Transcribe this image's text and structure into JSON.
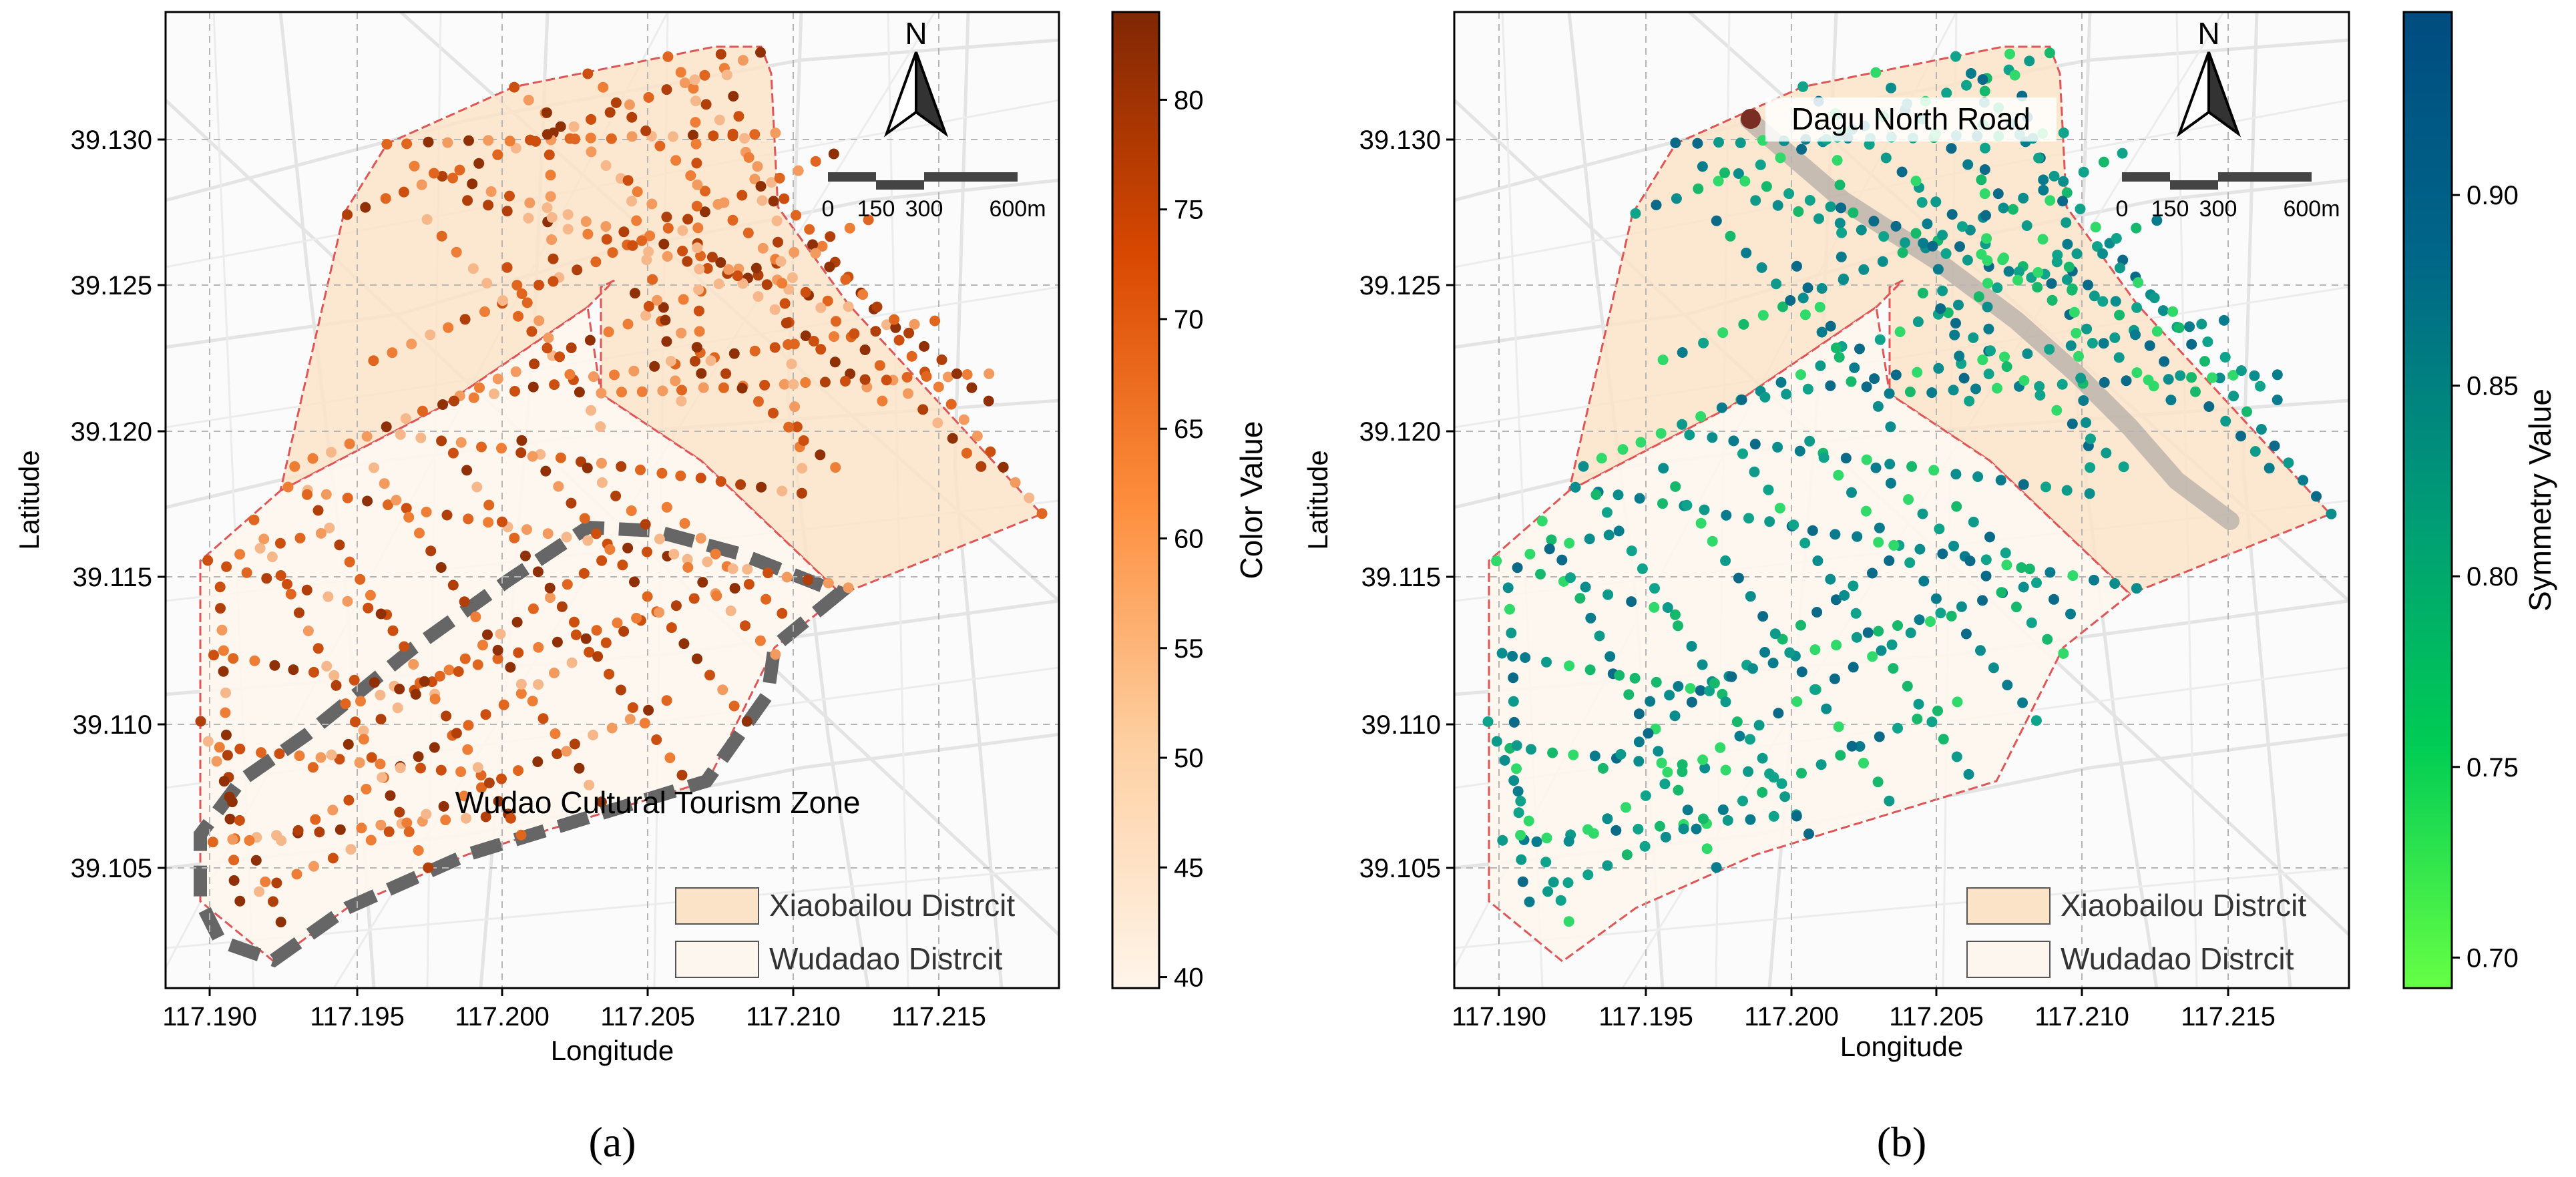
{
  "figure": {
    "panels": [
      {
        "id": "a",
        "label": "(a)",
        "xlabel": "Longitude",
        "ylabel": "Latitude",
        "xticks": [
          "117.190",
          "117.195",
          "117.200",
          "117.205",
          "117.210",
          "117.215"
        ],
        "yticks": [
          "39.105",
          "39.110",
          "39.115",
          "39.120",
          "39.125",
          "39.130"
        ],
        "colorbar": {
          "label": "Color Value",
          "ticks": [
            "40",
            "45",
            "50",
            "55",
            "60",
            "65",
            "70",
            "75",
            "80"
          ],
          "min": 39.5,
          "max": 84,
          "colors": [
            "#fff5eb",
            "#fdd0a2",
            "#fd8d3c",
            "#d94801",
            "#7f2704"
          ]
        },
        "compass": {
          "north_label": "N"
        },
        "scalebar": {
          "labels": [
            "0",
            "150",
            "300",
            "600m"
          ]
        },
        "annotation": "Wudao Cultural Tourism Zone",
        "legend": [
          "Xiaobailou Distrcit",
          "Wudadao Distrcit"
        ],
        "legend_colors": [
          "#fbe3c8",
          "#fdf6ee"
        ],
        "point_color": "#e06a1f"
      },
      {
        "id": "b",
        "label": "(b)",
        "xlabel": "Longitude",
        "ylabel": "Latitude",
        "xticks": [
          "117.190",
          "117.195",
          "117.200",
          "117.205",
          "117.210",
          "117.215"
        ],
        "yticks": [
          "39.105",
          "39.110",
          "39.115",
          "39.120",
          "39.125",
          "39.130"
        ],
        "colorbar": {
          "label": "Symmetry Value",
          "ticks": [
            "0.70",
            "0.75",
            "0.80",
            "0.85",
            "0.90"
          ],
          "min": 0.692,
          "max": 0.948,
          "colors": [
            "#66ff44",
            "#00cc55",
            "#009977",
            "#006688",
            "#004c80"
          ]
        },
        "compass": {
          "north_label": "N"
        },
        "scalebar": {
          "labels": [
            "0",
            "150",
            "300",
            "600m"
          ]
        },
        "annotation": "Dagu North Road",
        "legend": [
          "Xiaobailou Distrcit",
          "Wudadao Distrcit"
        ],
        "legend_colors": [
          "#fbe3c8",
          "#fdf6ee"
        ],
        "point_color": "#0e9a8a"
      }
    ],
    "region_outline_color": "#e05555",
    "zone_outline_color": "#666666"
  }
}
